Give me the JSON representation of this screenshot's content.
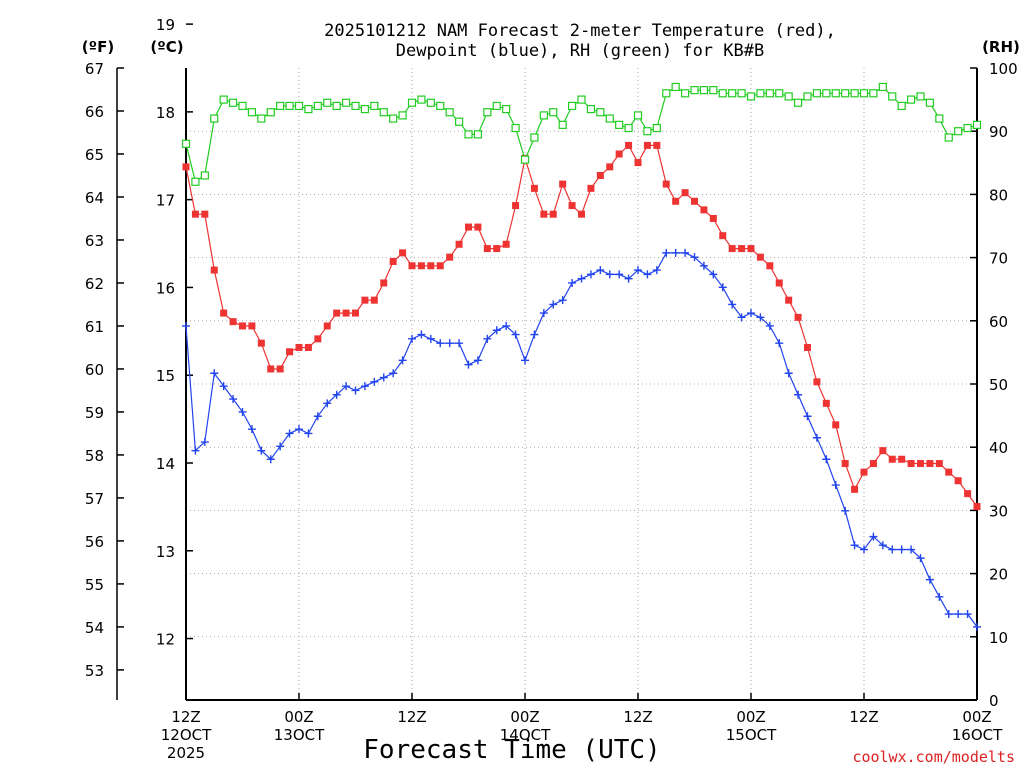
{
  "chart_data": {
    "type": "line",
    "title": [
      "2025101212 NAM Forecast 2-meter Temperature (red),",
      "Dewpoint (blue), RH (green) for KB#B"
    ],
    "units": {
      "fahrenheit": "(ºF)",
      "celsius": "(ºC)",
      "rh": "(RH)"
    },
    "xlabel": "Forecast Time (UTC)",
    "credit": "coolwx.com/modelts",
    "xlim_hours": [
      0,
      84
    ],
    "x_ticks": [
      {
        "hour": 0,
        "lines": [
          "12Z",
          "12OCT",
          "2025"
        ]
      },
      {
        "hour": 12,
        "lines": [
          "00Z",
          "13OCT"
        ]
      },
      {
        "hour": 24,
        "lines": [
          "12Z"
        ]
      },
      {
        "hour": 36,
        "lines": [
          "00Z",
          "14OCT"
        ]
      },
      {
        "hour": 48,
        "lines": [
          "12Z"
        ]
      },
      {
        "hour": 60,
        "lines": [
          "00Z",
          "15OCT"
        ]
      },
      {
        "hour": 72,
        "lines": [
          "12Z"
        ]
      },
      {
        "hour": 84,
        "lines": [
          "00Z",
          "16OCT"
        ]
      }
    ],
    "y_celsius": {
      "range": [
        11.3,
        18.5
      ],
      "ticks": [
        "12",
        "13",
        "14",
        "15",
        "16",
        "17",
        "18",
        "19"
      ]
    },
    "y_fahrenheit": {
      "range": [
        52.3,
        67.0
      ],
      "ticks": [
        "53",
        "54",
        "55",
        "56",
        "57",
        "58",
        "59",
        "60",
        "61",
        "62",
        "63",
        "64",
        "65",
        "66",
        "67"
      ]
    },
    "y_rh": {
      "range": [
        0,
        100
      ],
      "ticks": [
        "0",
        "10",
        "20",
        "30",
        "40",
        "50",
        "60",
        "70",
        "80",
        "90",
        "100"
      ]
    },
    "grid": true,
    "x": [
      0,
      1,
      2,
      3,
      4,
      5,
      6,
      7,
      8,
      9,
      10,
      11,
      12,
      13,
      14,
      15,
      16,
      17,
      18,
      19,
      20,
      21,
      22,
      23,
      24,
      25,
      26,
      27,
      28,
      29,
      30,
      31,
      32,
      33,
      34,
      35,
      36,
      37,
      38,
      39,
      40,
      41,
      42,
      43,
      44,
      45,
      46,
      47,
      48,
      49,
      50,
      51,
      52,
      53,
      54,
      55,
      56,
      57,
      58,
      59,
      60,
      61,
      62,
      63,
      64,
      65,
      66,
      67,
      68,
      69,
      70,
      71,
      72,
      73,
      74,
      75,
      76,
      77,
      78,
      79,
      80,
      81,
      82,
      83,
      84
    ],
    "series": [
      {
        "name": "Temperature (°F)",
        "color": "#ee3333",
        "marker": "filled-square",
        "axis": "fahrenheit",
        "values": [
          64.7,
          63.6,
          63.6,
          62.3,
          61.3,
          61.1,
          61.0,
          61.0,
          60.6,
          60.0,
          60.0,
          60.4,
          60.5,
          60.5,
          60.7,
          61.0,
          61.3,
          61.3,
          61.3,
          61.6,
          61.6,
          62.0,
          62.5,
          62.7,
          62.4,
          62.4,
          62.4,
          62.4,
          62.6,
          62.9,
          63.3,
          63.3,
          62.8,
          62.8,
          62.9,
          63.8,
          64.9,
          64.2,
          63.6,
          63.6,
          64.3,
          63.8,
          63.6,
          64.2,
          64.5,
          64.7,
          65.0,
          65.2,
          64.8,
          65.2,
          65.2,
          64.3,
          63.9,
          64.1,
          63.9,
          63.7,
          63.5,
          63.1,
          62.8,
          62.8,
          62.8,
          62.6,
          62.4,
          62.0,
          61.6,
          61.2,
          60.5,
          59.7,
          59.2,
          58.7,
          57.8,
          57.2,
          57.6,
          57.8,
          58.1,
          57.9,
          57.9,
          57.8,
          57.8,
          57.8,
          57.8,
          57.6,
          57.4,
          57.1,
          56.8
        ]
      },
      {
        "name": "Dewpoint (°F)",
        "color": "#2244ee",
        "marker": "plus",
        "axis": "fahrenheit",
        "values": [
          61.0,
          58.1,
          58.3,
          59.9,
          59.6,
          59.3,
          59.0,
          58.6,
          58.1,
          57.9,
          58.2,
          58.5,
          58.6,
          58.5,
          58.9,
          59.2,
          59.4,
          59.6,
          59.5,
          59.6,
          59.7,
          59.8,
          59.9,
          60.2,
          60.7,
          60.8,
          60.7,
          60.6,
          60.6,
          60.6,
          60.1,
          60.2,
          60.7,
          60.9,
          61.0,
          60.8,
          60.2,
          60.8,
          61.3,
          61.5,
          61.6,
          62.0,
          62.1,
          62.2,
          62.3,
          62.2,
          62.2,
          62.1,
          62.3,
          62.2,
          62.3,
          62.7,
          62.7,
          62.7,
          62.6,
          62.4,
          62.2,
          61.9,
          61.5,
          61.2,
          61.3,
          61.2,
          61.0,
          60.6,
          59.9,
          59.4,
          58.9,
          58.4,
          57.9,
          57.3,
          56.7,
          55.9,
          55.8,
          56.1,
          55.9,
          55.8,
          55.8,
          55.8,
          55.6,
          55.1,
          54.7,
          54.3,
          54.3,
          54.3,
          54.0
        ]
      },
      {
        "name": "RH (%)",
        "color": "#22cc22",
        "marker": "open-square",
        "axis": "rh",
        "values": [
          88,
          82,
          83,
          92,
          95,
          94.5,
          94,
          93,
          92,
          93,
          94,
          94,
          94,
          93.5,
          94,
          94.5,
          94,
          94.5,
          94,
          93.5,
          94,
          93,
          92,
          92.5,
          94.5,
          95,
          94.5,
          94,
          93,
          91.5,
          89.5,
          89.5,
          93,
          94,
          93.5,
          90.5,
          85.5,
          89,
          92.5,
          93,
          91,
          94,
          95,
          93.5,
          93,
          92,
          91,
          90.5,
          92.5,
          90,
          90.5,
          96,
          97,
          96,
          96.5,
          96.5,
          96.5,
          96,
          96,
          96,
          95.5,
          96,
          96,
          96,
          95.5,
          94.5,
          95.5,
          96,
          96,
          96,
          96,
          96,
          96,
          96,
          97,
          95.5,
          94,
          95,
          95.5,
          94.5,
          92,
          89,
          90,
          90.5,
          91
        ]
      }
    ]
  }
}
